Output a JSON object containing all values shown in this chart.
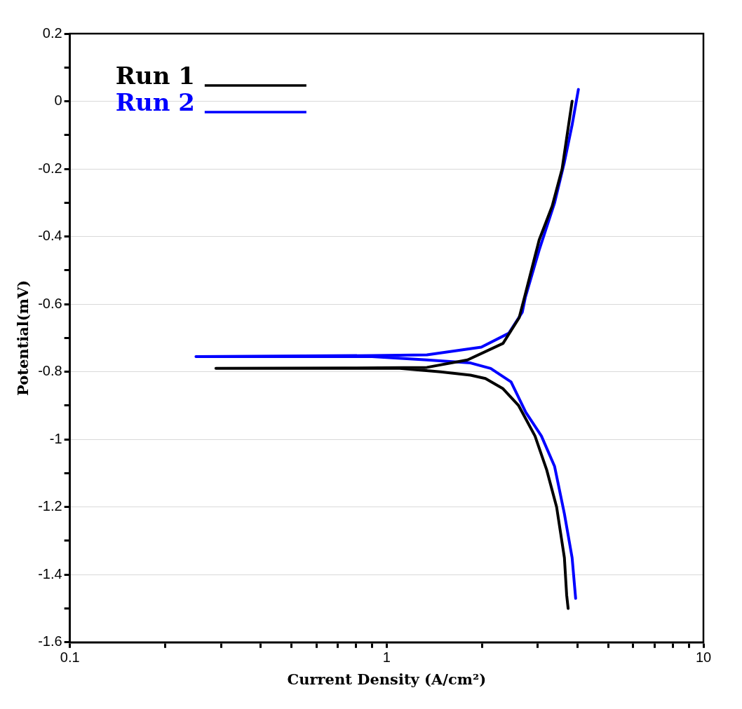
{
  "chart_data": {
    "type": "line",
    "xlabel": "Current Density (A/cm²)",
    "ylabel": "Potential(mV)",
    "log": "x",
    "xlim": [
      0.1,
      10
    ],
    "xticks": [
      0.1,
      {
        "value": 0.2,
        "label": null
      },
      {
        "value": 0.3,
        "label": null
      },
      {
        "value": 0.4,
        "label": null
      },
      {
        "value": 0.5,
        "label": null
      },
      {
        "value": 0.6,
        "label": null
      },
      {
        "value": 0.7,
        "label": null
      },
      {
        "value": 0.8,
        "label": null
      },
      {
        "value": 0.9,
        "label": null
      },
      1,
      {
        "value": 2,
        "label": null
      },
      {
        "value": 3,
        "label": null
      },
      {
        "value": 4,
        "label": null
      },
      {
        "value": 5,
        "label": null
      },
      {
        "value": 6,
        "label": null
      },
      {
        "value": 7,
        "label": null
      },
      {
        "value": 8,
        "label": null
      },
      {
        "value": 9,
        "label": null
      },
      10
    ],
    "ylim": [
      -1.6,
      0.2
    ],
    "yticks": [
      -1.6,
      {
        "value": -1.5,
        "label": null
      },
      -1.4,
      {
        "value": -1.3,
        "label": null
      },
      -1.2,
      {
        "value": -1.1,
        "label": null
      },
      -1,
      {
        "value": -0.9,
        "label": null
      },
      -0.8,
      {
        "value": -0.7,
        "label": null
      },
      -0.6,
      {
        "value": -0.5,
        "label": null
      },
      -0.4,
      {
        "value": -0.3,
        "label": null
      },
      -0.2,
      {
        "value": -0.1,
        "label": null
      },
      0,
      {
        "value": 0.1,
        "label": null
      },
      0.2
    ],
    "grid": "y",
    "legend": "top left",
    "marker": "none",
    "line_style": "solid",
    "series": [
      {
        "name": "Run 1",
        "color": "#000000",
        "x": [
          3.74,
          3.7,
          3.64,
          3.44,
          3.2,
          2.94,
          2.61,
          2.33,
          2.05,
          1.84,
          1.48,
          1.1,
          0.74,
          0.289,
          0.74,
          1.34,
          1.8,
          2.33,
          2.62,
          2.74,
          3.03,
          3.33,
          3.58,
          3.78,
          3.85
        ],
        "values": [
          -1.5,
          -1.46,
          -1.35,
          -1.2,
          -1.09,
          -0.99,
          -0.9,
          -0.85,
          -0.82,
          -0.81,
          -0.8,
          -0.79,
          -0.79,
          -0.79,
          -0.789,
          -0.787,
          -0.765,
          -0.716,
          -0.64,
          -0.57,
          -0.41,
          -0.31,
          -0.2,
          -0.05,
          0
        ]
      },
      {
        "name": "Run 2",
        "color": "#0000ff",
        "x": [
          3.95,
          3.85,
          3.64,
          3.39,
          3.08,
          2.75,
          2.47,
          2.13,
          1.84,
          1.34,
          0.9,
          0.25,
          0.9,
          1.34,
          1.99,
          2.43,
          2.68,
          2.74,
          3.03,
          3.39,
          3.64,
          3.85,
          4.03
        ],
        "values": [
          -1.47,
          -1.35,
          -1.22,
          -1.08,
          -0.99,
          -0.92,
          -0.83,
          -0.79,
          -0.774,
          -0.765,
          -0.755,
          -0.755,
          -0.752,
          -0.75,
          -0.727,
          -0.686,
          -0.624,
          -0.58,
          -0.44,
          -0.3,
          -0.18,
          -0.07,
          0.035
        ]
      }
    ]
  }
}
